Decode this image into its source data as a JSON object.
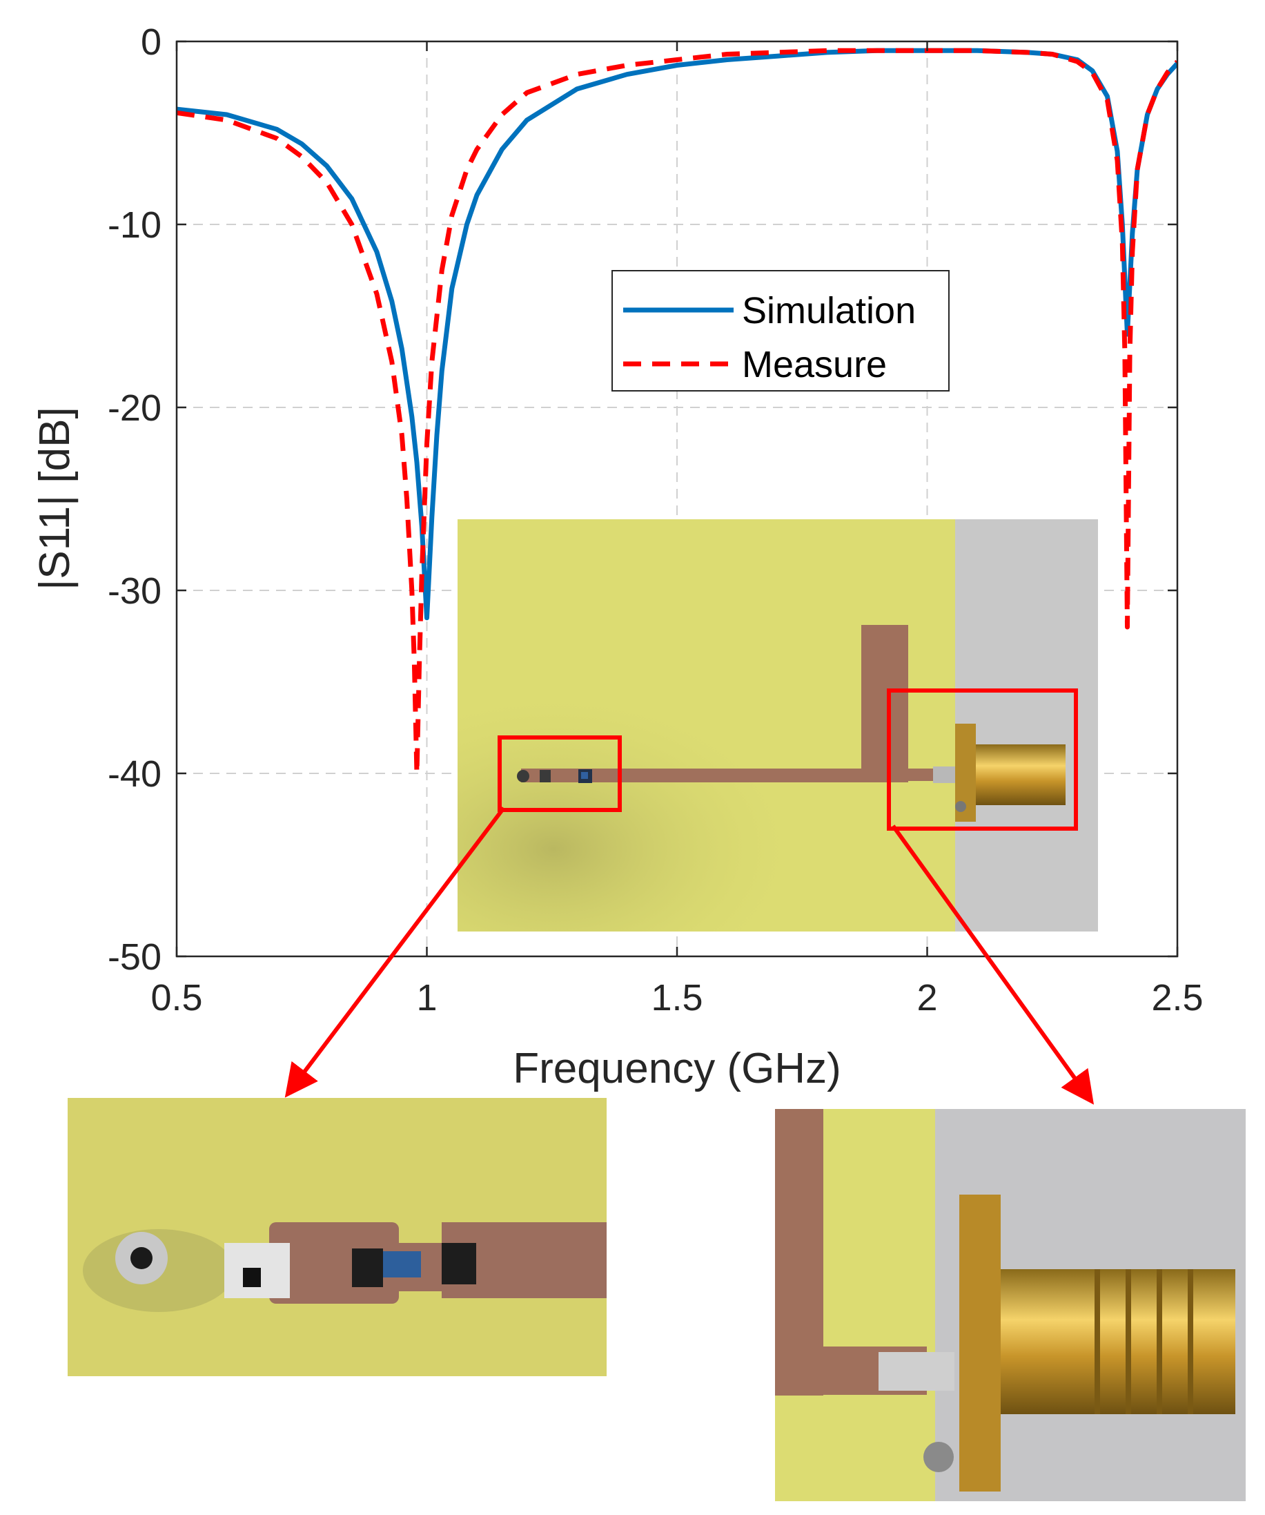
{
  "colors": {
    "simulation": "#0072BD",
    "measure": "#FF0000",
    "callout": "#FF0000",
    "grid": "#D0D0D0",
    "axis": "#262626",
    "pcb": "#DCDC72",
    "trace": "#A0705C",
    "connector": "#D9A82A",
    "background_surface": "#C8C8C8"
  },
  "chart_data": {
    "type": "line",
    "xlabel": "Frequency (GHz)",
    "ylabel": "|S11| [dB]",
    "xlim": [
      0.5,
      2.5
    ],
    "ylim": [
      -50,
      0
    ],
    "xticks": [
      0.5,
      1,
      1.5,
      2,
      2.5
    ],
    "xtick_labels": [
      "0.5",
      "1",
      "1.5",
      "2",
      "2.5"
    ],
    "yticks": [
      0,
      -10,
      -20,
      -30,
      -40,
      -50
    ],
    "ytick_labels": [
      "0",
      "-10",
      "-20",
      "-30",
      "-40",
      "-50"
    ],
    "grid": true,
    "legend_position": "center-right",
    "series": [
      {
        "name": "Simulation",
        "style": "solid",
        "x": [
          0.5,
          0.6,
          0.7,
          0.75,
          0.8,
          0.85,
          0.9,
          0.93,
          0.95,
          0.97,
          0.98,
          0.99,
          1.0,
          1.01,
          1.02,
          1.03,
          1.05,
          1.08,
          1.1,
          1.15,
          1.2,
          1.3,
          1.4,
          1.5,
          1.6,
          1.7,
          1.8,
          1.9,
          2.0,
          2.1,
          2.2,
          2.25,
          2.3,
          2.33,
          2.36,
          2.38,
          2.39,
          2.4,
          2.41,
          2.42,
          2.44,
          2.46,
          2.48,
          2.5
        ],
        "y": [
          -3.7,
          -4.0,
          -4.8,
          -5.6,
          -6.8,
          -8.6,
          -11.5,
          -14.2,
          -16.8,
          -20.5,
          -23.0,
          -26.5,
          -31.5,
          -26.0,
          -21.5,
          -18.0,
          -13.5,
          -10.0,
          -8.4,
          -5.9,
          -4.3,
          -2.6,
          -1.8,
          -1.3,
          -1.0,
          -0.8,
          -0.6,
          -0.5,
          -0.5,
          -0.5,
          -0.6,
          -0.7,
          -1.0,
          -1.6,
          -3.0,
          -6.0,
          -10.0,
          -16.0,
          -10.5,
          -7.0,
          -4.0,
          -2.6,
          -1.8,
          -1.2
        ]
      },
      {
        "name": "Measure",
        "style": "dashed",
        "x": [
          0.5,
          0.6,
          0.7,
          0.75,
          0.8,
          0.85,
          0.9,
          0.93,
          0.95,
          0.96,
          0.97,
          0.975,
          0.98,
          0.985,
          0.99,
          1.0,
          1.01,
          1.03,
          1.05,
          1.08,
          1.1,
          1.15,
          1.2,
          1.3,
          1.4,
          1.5,
          1.6,
          1.7,
          1.8,
          1.9,
          2.0,
          2.1,
          2.2,
          2.25,
          2.3,
          2.33,
          2.36,
          2.38,
          2.39,
          2.395,
          2.4,
          2.405,
          2.41,
          2.42,
          2.44,
          2.46,
          2.48,
          2.5
        ],
        "y": [
          -3.9,
          -4.3,
          -5.3,
          -6.3,
          -7.7,
          -10.0,
          -13.8,
          -17.5,
          -21.5,
          -25.0,
          -30.0,
          -34.0,
          -40.0,
          -34.0,
          -29.0,
          -22.0,
          -17.5,
          -12.5,
          -9.5,
          -7.0,
          -5.9,
          -4.0,
          -2.8,
          -1.8,
          -1.3,
          -1.0,
          -0.7,
          -0.6,
          -0.5,
          -0.5,
          -0.5,
          -0.5,
          -0.6,
          -0.7,
          -1.1,
          -1.7,
          -3.2,
          -6.5,
          -11.0,
          -17.0,
          -32.0,
          -17.0,
          -11.5,
          -7.0,
          -4.0,
          -2.6,
          -1.7,
          -1.1
        ]
      }
    ]
  }
}
